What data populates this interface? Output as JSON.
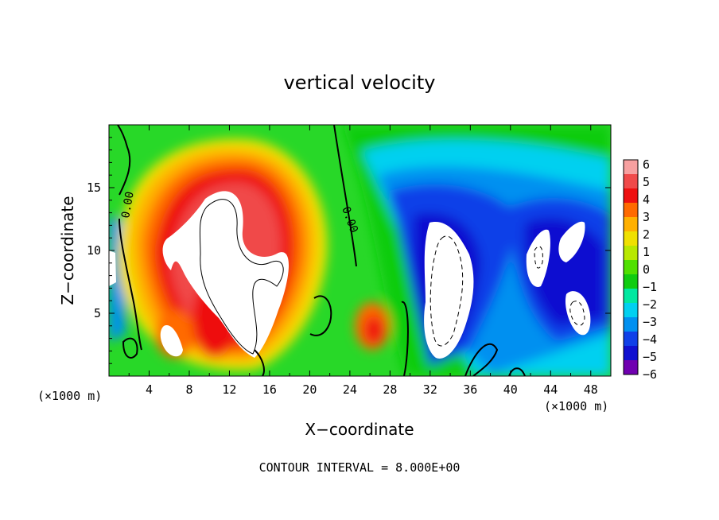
{
  "chart_data": {
    "type": "heatmap",
    "title": "vertical velocity",
    "xlabel": "X−coordinate",
    "ylabel": "Z−coordinate",
    "x_scale_label": "(×1000 m)",
    "y_scale_label": "(×1000 m)",
    "footnote": "CONTOUR INTERVAL = 8.000E+00",
    "xlim": [
      0,
      50
    ],
    "ylim": [
      0,
      20
    ],
    "x_ticks": [
      4,
      8,
      12,
      16,
      20,
      24,
      28,
      32,
      36,
      40,
      44,
      48
    ],
    "y_ticks": [
      5,
      10,
      15
    ],
    "colorbar": {
      "min": -6,
      "max": 6,
      "labels": [
        "6",
        "5",
        "4",
        "3",
        "2",
        "1",
        "0",
        "−1",
        "−2",
        "−3",
        "−4",
        "−5",
        "−6"
      ],
      "colors": [
        "#f7a0a0",
        "#f04a4a",
        "#ee1010",
        "#ff6a00",
        "#ffb000",
        "#f0e000",
        "#b8e800",
        "#50e000",
        "#10cc10",
        "#00e8a0",
        "#00d0f0",
        "#0090f0",
        "#1040e8",
        "#1010d0",
        "#7000b0"
      ],
      "out_of_range_color": "#ffffff"
    },
    "contour_labels": [
      "0.00",
      "0.00"
    ],
    "features": [
      {
        "name": "updraft core",
        "x": 13,
        "z": 10,
        "w": "> 6"
      },
      {
        "name": "downdraft core",
        "x": 33,
        "z": 6,
        "w": "< -6"
      },
      {
        "name": "downdraft core",
        "x": 44,
        "z": 10,
        "w": "< -6"
      },
      {
        "name": "downdraft core",
        "x": 46,
        "z": 5,
        "w": "< -6"
      }
    ]
  }
}
